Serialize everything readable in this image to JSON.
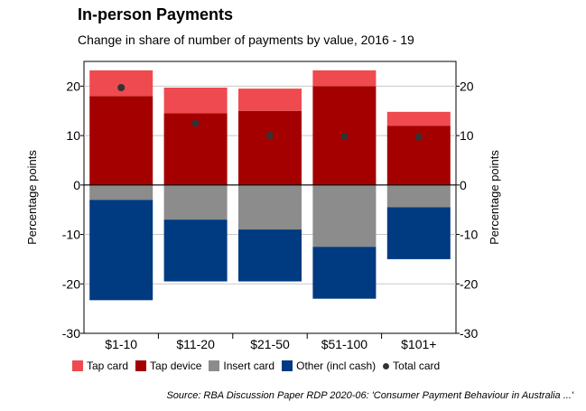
{
  "title": "In-person Payments",
  "subtitle": "Change in share of number of payments by value, 2016 - 19",
  "source": "Source: RBA Discussion Paper RDP 2020-06: 'Consumer Payment Behaviour in Australia ...'",
  "colors": {
    "tap_card": "#ef4a4f",
    "tap_device": "#a50000",
    "insert_card": "#8c8c8c",
    "other": "#003a80",
    "total_card": "#333333"
  },
  "chart_data": {
    "type": "bar",
    "stacked": true,
    "categories": [
      "$1-10",
      "$11-20",
      "$21-50",
      "$51-100",
      "$101+"
    ],
    "series": [
      {
        "name": "Tap device",
        "values": [
          18,
          14.5,
          15,
          20,
          12
        ]
      },
      {
        "name": "Tap card",
        "values": [
          5.2,
          5.2,
          4.5,
          3.2,
          2.8
        ]
      },
      {
        "name": "Insert card",
        "values": [
          -3,
          -7,
          -9,
          -12.5,
          -4.5
        ]
      },
      {
        "name": "Other (incl cash)",
        "values": [
          -20.3,
          -12.5,
          -10.5,
          -10.5,
          -10.5
        ]
      }
    ],
    "total_card": {
      "name": "Total card",
      "values": [
        19.7,
        12.5,
        10,
        9.8,
        9.7
      ]
    },
    "ylabel": "Percentage points",
    "ylim": [
      -30,
      25
    ],
    "yticks": [
      -30,
      -20,
      -10,
      0,
      10,
      20
    ],
    "yticklabels": [
      "-30",
      "-20",
      "-10",
      "0",
      "10",
      "20"
    ],
    "grid": true,
    "legend_position": "bottom"
  }
}
